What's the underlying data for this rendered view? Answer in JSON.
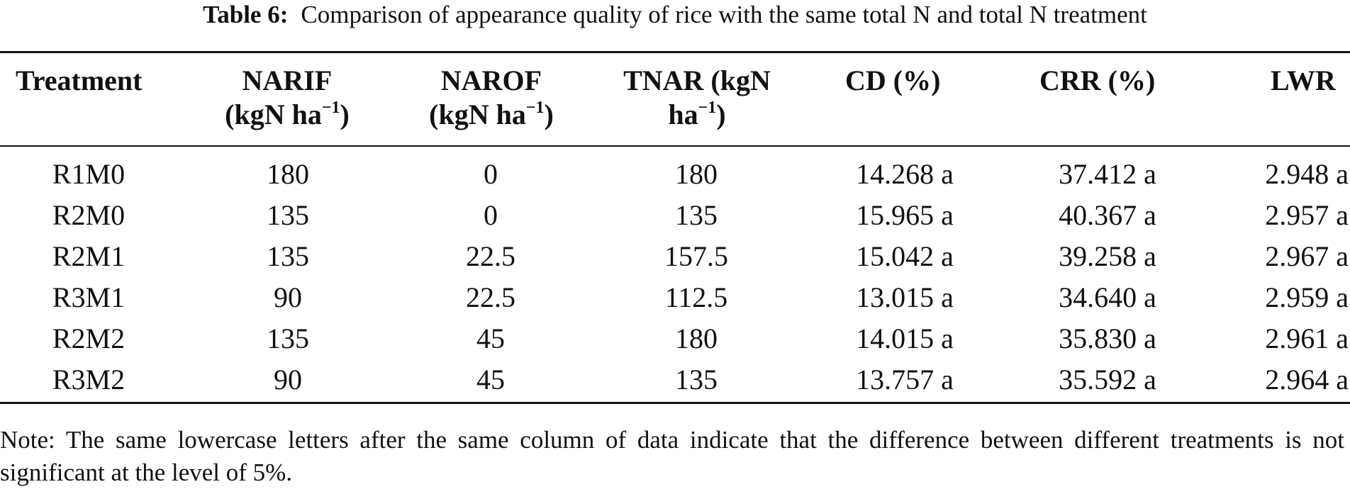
{
  "caption": {
    "label": "Table 6:",
    "text": "Comparison of appearance quality of rice with the same total N and total N treatment"
  },
  "columns": [
    {
      "line1": "Treatment",
      "line2": "",
      "unit_sup": ""
    },
    {
      "line1": "NARIF",
      "line2": "(kgN ha",
      "unit_sup": "−1",
      "line2_end": ")"
    },
    {
      "line1": "NAROF",
      "line2": "(kgN ha",
      "unit_sup": "−1",
      "line2_end": ")"
    },
    {
      "line1": "TNAR (kgN",
      "line2": "ha",
      "unit_sup": "−1",
      "line2_end": ")"
    },
    {
      "line1": "CD (%)",
      "line2": "",
      "unit_sup": ""
    },
    {
      "line1": "CRR (%)",
      "line2": "",
      "unit_sup": ""
    },
    {
      "line1": "LWR",
      "line2": "",
      "unit_sup": ""
    }
  ],
  "rows": [
    [
      "R1M0",
      "180",
      "0",
      "180",
      "14.268 a",
      "37.412 a",
      "2.948 a"
    ],
    [
      "R2M0",
      "135",
      "0",
      "135",
      "15.965 a",
      "40.367 a",
      "2.957 a"
    ],
    [
      "R2M1",
      "135",
      "22.5",
      "157.5",
      "15.042 a",
      "39.258 a",
      "2.967 a"
    ],
    [
      "R3M1",
      "90",
      "22.5",
      "112.5",
      "13.015 a",
      "34.640 a",
      "2.959 a"
    ],
    [
      "R2M2",
      "135",
      "45",
      "180",
      "14.015 a",
      "35.830 a",
      "2.961 a"
    ],
    [
      "R3M2",
      "90",
      "45",
      "135",
      "13.757 a",
      "35.592 a",
      "2.964 a"
    ]
  ],
  "note": "Note: The same lowercase letters after the same column of data indicate that the difference between different treatments is not significant at the level of 5%."
}
